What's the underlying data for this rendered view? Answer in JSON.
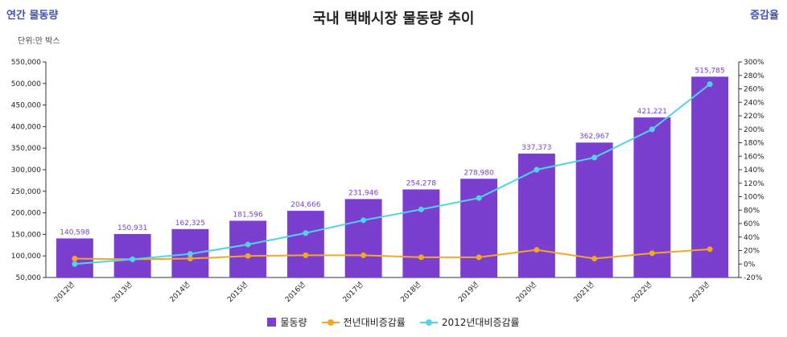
{
  "header": {
    "left_label": "연간 물동량",
    "title": "국내 택배시장 물동량 추이",
    "right_label": "증감율",
    "unit_note": "단위:만 박스"
  },
  "colors": {
    "bar": "#7b3fd0",
    "yoy_line": "#f5a623",
    "cum_line": "#4fd4ea",
    "label": "#7c3fd0"
  },
  "chart_data": {
    "type": "bar",
    "title": "국내 택배시장 물동량 추이",
    "categories": [
      "2012년",
      "2013년",
      "2014년",
      "2015년",
      "2016년",
      "2017년",
      "2018년",
      "2019년",
      "2020년",
      "2021년",
      "2022년",
      "2023년"
    ],
    "ylim": [
      50000,
      550000
    ],
    "y_ticks": [
      "50,000",
      "100,000",
      "150,000",
      "200,000",
      "250,000",
      "300,000",
      "350,000",
      "400,000",
      "450,000",
      "500,000",
      "550,000"
    ],
    "y2lim": [
      -20,
      300
    ],
    "y2_ticks": [
      "-20%",
      "0%",
      "20%",
      "40%",
      "60%",
      "80%",
      "100%",
      "120%",
      "140%",
      "160%",
      "180%",
      "200%",
      "220%",
      "240%",
      "260%",
      "280%",
      "300%"
    ],
    "series": [
      {
        "name": "물동량",
        "kind": "bar",
        "axis": "left",
        "values": [
          140598,
          150931,
          162325,
          181596,
          204666,
          231946,
          254278,
          278980,
          337373,
          362967,
          421221,
          515785
        ],
        "labels": [
          "140,598",
          "150,931",
          "162,325",
          "181,596",
          "204,666",
          "231,946",
          "254,278",
          "278,980",
          "337,373",
          "362,967",
          "421,221",
          "515,785"
        ]
      },
      {
        "name": "전년대비증감률",
        "kind": "line",
        "axis": "right",
        "values": [
          8,
          7,
          8,
          12,
          13,
          13,
          10,
          10,
          21,
          8,
          16,
          22
        ]
      },
      {
        "name": "2012년대비증감률",
        "kind": "line",
        "axis": "right",
        "values": [
          0,
          7,
          15,
          29,
          46,
          65,
          81,
          98,
          140,
          158,
          200,
          267
        ]
      }
    ],
    "legend_position": "bottom",
    "grid": false
  }
}
